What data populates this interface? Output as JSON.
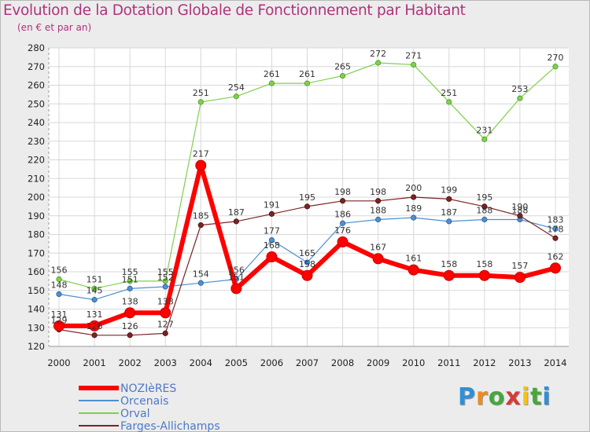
{
  "title": "Evolution de la Dotation Globale de Fonctionnement par Habitant",
  "subtitle": "(en € et par an)",
  "logo": {
    "letters": [
      "P",
      "r",
      "o",
      "x",
      "i",
      "t",
      "i"
    ],
    "colors": [
      "#2f8fd8",
      "#f08a1c",
      "#45a83a",
      "#d63a3a",
      "#f2c21a",
      "#45a83a",
      "#2f8fd8"
    ]
  },
  "chart_data": {
    "type": "line",
    "title": "Evolution de la Dotation Globale de Fonctionnement par Habitant",
    "subtitle": "(en € et par an)",
    "xlabel": "",
    "ylabel": "",
    "x": [
      2000,
      2001,
      2002,
      2003,
      2004,
      2005,
      2006,
      2007,
      2008,
      2009,
      2010,
      2011,
      2012,
      2013,
      2014
    ],
    "x_ticks": [
      "2000",
      "2001",
      "2002",
      "2003",
      "2004",
      "2005",
      "2006",
      "2007",
      "2008",
      "2009",
      "2010",
      "2011",
      "2012",
      "2013",
      "2014"
    ],
    "ylim": [
      120,
      280
    ],
    "y_ticks": [
      120,
      130,
      140,
      150,
      160,
      170,
      180,
      190,
      200,
      210,
      220,
      230,
      240,
      250,
      260,
      270,
      280
    ],
    "grid": true,
    "legend_position": "bottom-left",
    "series": [
      {
        "name": "NOZIèRES",
        "color": "#ff0000",
        "values": [
          131,
          131,
          138,
          138,
          217,
          151,
          168,
          158,
          176,
          167,
          161,
          158,
          158,
          157,
          162
        ]
      },
      {
        "name": "Orcenais",
        "color": "#4d8fd1",
        "values": [
          148,
          145,
          151,
          152,
          154,
          156,
          177,
          165,
          186,
          188,
          189,
          187,
          188,
          188,
          183
        ]
      },
      {
        "name": "Orval",
        "color": "#7fd04a",
        "values": [
          156,
          151,
          155,
          155,
          251,
          254,
          261,
          261,
          265,
          272,
          271,
          251,
          231,
          253,
          270
        ]
      },
      {
        "name": "Farges-Allichamps",
        "color": "#7a2424",
        "values": [
          129,
          126,
          126,
          127,
          185,
          187,
          191,
          195,
          198,
          198,
          200,
          199,
          195,
          190,
          178
        ]
      }
    ]
  }
}
